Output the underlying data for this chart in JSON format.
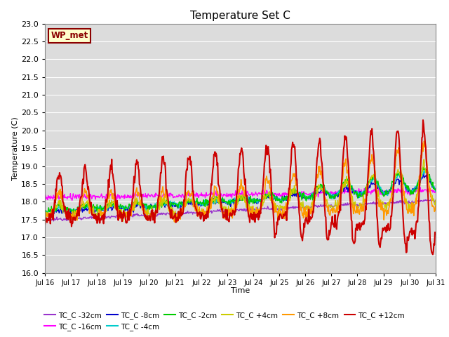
{
  "title": "Temperature Set C",
  "xlabel": "Time",
  "ylabel": "Temperature (C)",
  "ylim": [
    16.0,
    23.0
  ],
  "yticks": [
    16.0,
    16.5,
    17.0,
    17.5,
    18.0,
    18.5,
    19.0,
    19.5,
    20.0,
    20.5,
    21.0,
    21.5,
    22.0,
    22.5,
    23.0
  ],
  "bg_color": "#dcdcdc",
  "annotation_text": "WP_met",
  "annotation_bg": "#ffffcc",
  "annotation_border": "#8b0000",
  "series_colors": {
    "TC_C -32cm": "#9933cc",
    "TC_C -16cm": "#ff00ff",
    "TC_C -8cm": "#0000cc",
    "TC_C -4cm": "#00cccc",
    "TC_C -2cm": "#00cc00",
    "TC_C +4cm": "#cccc00",
    "TC_C +8cm": "#ff9900",
    "TC_C +12cm": "#cc0000"
  },
  "n_days": 15,
  "pts_per_day": 48
}
